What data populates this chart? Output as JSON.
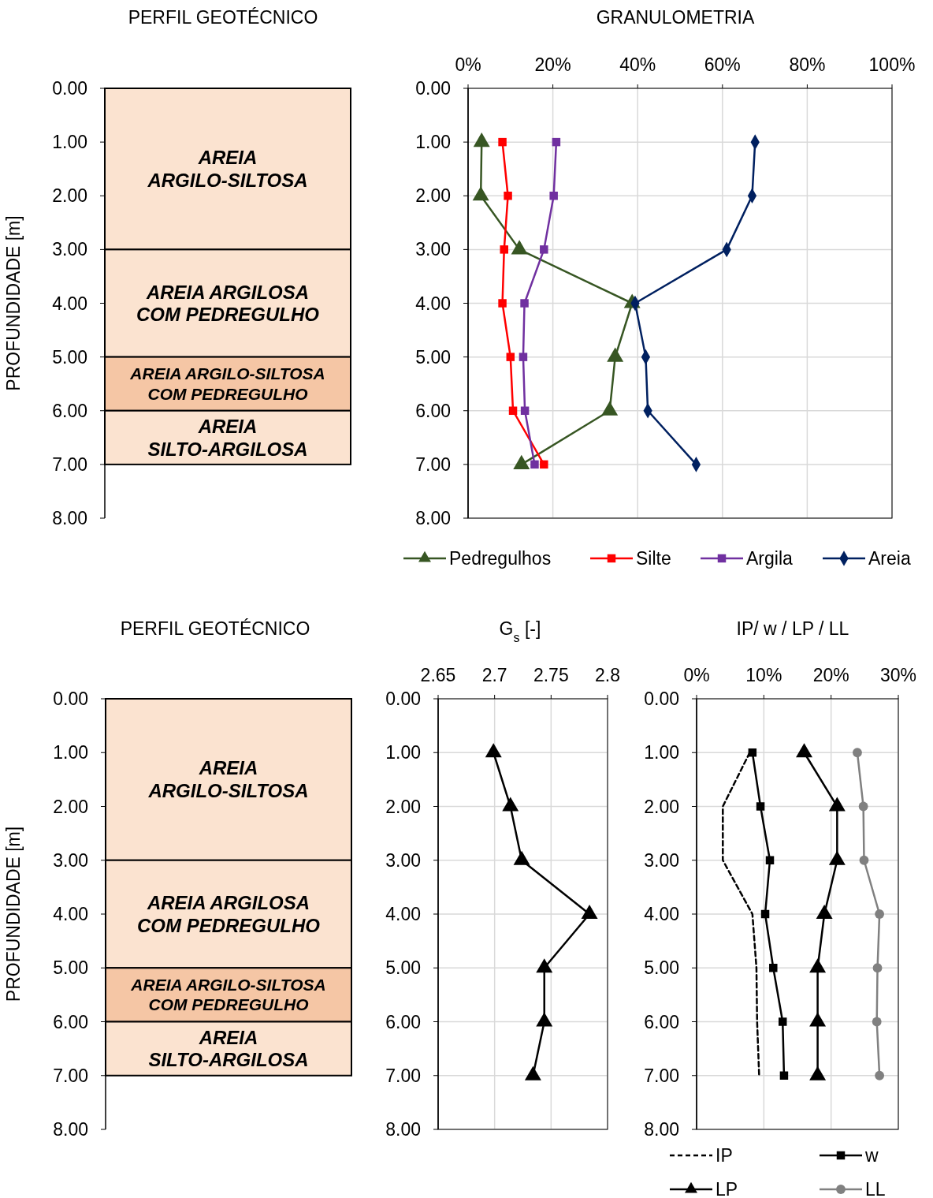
{
  "chart_data": [
    {
      "type": "bar",
      "stacked": true,
      "title": "PERFIL GEOTÉCNICO",
      "ylabel": "PROFUNDIDADE [m]",
      "categories": [
        null
      ],
      "ylim": [
        8,
        0
      ],
      "yticks": [
        {
          "value": 0,
          "label": "0.00"
        },
        {
          "value": 1,
          "label": "1.00"
        },
        {
          "value": 2,
          "label": "2.00"
        },
        {
          "value": 3,
          "label": "3.00"
        },
        {
          "value": 4,
          "label": "4.00"
        },
        {
          "value": 5,
          "label": "5.00"
        },
        {
          "value": 6,
          "label": "6.00"
        },
        {
          "value": 7,
          "label": "7.00"
        },
        {
          "value": 8,
          "label": "8.00"
        }
      ],
      "tick_labels": "y",
      "series": [
        {
          "name": "AREIA ARGILO-SILTOSA",
          "color": "#fbe3d0",
          "values": [
            3
          ]
        },
        {
          "name": "AREIA ARGILOSA COM PEDREGULHO",
          "color": "#fbe3d0",
          "values": [
            2
          ]
        },
        {
          "name": "AREIA ARGILO-SILTOSA COM PEDREGULHO",
          "color": "#f5c6a5",
          "values": [
            1
          ]
        },
        {
          "name": "AREIA SILTO-ARGILOSA",
          "color": "#fbe3d0",
          "values": [
            1
          ]
        }
      ]
    },
    {
      "type": "line",
      "title": "GRANULOMETRIA",
      "xlim": [
        0,
        100
      ],
      "xticks": [
        {
          "value": 0,
          "label": "0%"
        },
        {
          "value": 20,
          "label": "20%"
        },
        {
          "value": 40,
          "label": "40%"
        },
        {
          "value": 60,
          "label": "60%"
        },
        {
          "value": 80,
          "label": "80%"
        },
        {
          "value": 100,
          "label": "100%"
        }
      ],
      "ylim": [
        8,
        0
      ],
      "yticks": [
        {
          "value": 0,
          "label": "0.00"
        },
        {
          "value": 1,
          "label": "1.00"
        },
        {
          "value": 2,
          "label": "2.00"
        },
        {
          "value": 3,
          "label": "3.00"
        },
        {
          "value": 4,
          "label": "4.00"
        },
        {
          "value": 5,
          "label": "5.00"
        },
        {
          "value": 6,
          "label": "6.00"
        },
        {
          "value": 7,
          "label": "7.00"
        },
        {
          "value": 8,
          "label": "8.00"
        }
      ],
      "grid": true,
      "legend": "bottom",
      "series": [
        {
          "name": "Pedregulhos",
          "color": "#375623",
          "marker": "triangle",
          "line_style": "solid",
          "x": [
            3.2,
            3.0,
            12.1,
            38.7,
            34.7,
            33.4,
            12.6
          ],
          "values": [
            1,
            2,
            3,
            4,
            5,
            6,
            7
          ]
        },
        {
          "name": "Silte",
          "color": "#ff0000",
          "marker": "square",
          "line_style": "solid",
          "x": [
            8.1,
            9.4,
            8.5,
            8.1,
            10.0,
            10.6,
            17.9
          ],
          "values": [
            1,
            2,
            3,
            4,
            5,
            6,
            7
          ]
        },
        {
          "name": "Argila",
          "color": "#7030a0",
          "marker": "square",
          "line_style": "solid",
          "x": [
            20.8,
            20.2,
            17.9,
            13.3,
            13.0,
            13.4,
            15.7
          ],
          "values": [
            1,
            2,
            3,
            4,
            5,
            6,
            7
          ]
        },
        {
          "name": "Areia",
          "color": "#002060",
          "marker": "diamond",
          "line_style": "solid",
          "x": [
            67.7,
            67.0,
            61.0,
            39.4,
            41.9,
            42.4,
            53.8
          ],
          "values": [
            1,
            2,
            3,
            4,
            5,
            6,
            7
          ]
        }
      ]
    },
    {
      "type": "bar",
      "stacked": true,
      "title": "PERFIL GEOTÉCNICO",
      "ylabel": "PROFUNDIDADE [m]",
      "categories": [
        null
      ],
      "ylim": [
        8,
        0
      ],
      "yticks": [
        {
          "value": 0,
          "label": "0.00"
        },
        {
          "value": 1,
          "label": "1.00"
        },
        {
          "value": 2,
          "label": "2.00"
        },
        {
          "value": 3,
          "label": "3.00"
        },
        {
          "value": 4,
          "label": "4.00"
        },
        {
          "value": 5,
          "label": "5.00"
        },
        {
          "value": 6,
          "label": "6.00"
        },
        {
          "value": 7,
          "label": "7.00"
        },
        {
          "value": 8,
          "label": "8.00"
        }
      ],
      "tick_labels": "y",
      "series": [
        {
          "name": "AREIA ARGILO-SILTOSA",
          "color": "#fbe3d0",
          "values": [
            3
          ]
        },
        {
          "name": "AREIA ARGILOSA COM PEDREGULHO",
          "color": "#fbe3d0",
          "values": [
            2
          ]
        },
        {
          "name": "AREIA ARGILO-SILTOSA COM PEDREGULHO",
          "color": "#f5c6a5",
          "values": [
            1
          ]
        },
        {
          "name": "AREIA SILTO-ARGILOSA",
          "color": "#fbe3d0",
          "values": [
            1
          ]
        }
      ]
    },
    {
      "type": "line",
      "title": "G$_{s}$ [-]",
      "xlim": [
        2.65,
        2.8
      ],
      "xticks": [
        2.65,
        2.7,
        2.75,
        2.8
      ],
      "ylim": [
        8,
        0
      ],
      "yticks": [
        {
          "value": 0,
          "label": "0.00"
        },
        {
          "value": 1,
          "label": "1.00"
        },
        {
          "value": 2,
          "label": "2.00"
        },
        {
          "value": 3,
          "label": "3.00"
        },
        {
          "value": 4,
          "label": "4.00"
        },
        {
          "value": 5,
          "label": "5.00"
        },
        {
          "value": 6,
          "label": "6.00"
        },
        {
          "value": 7,
          "label": "7.00"
        },
        {
          "value": 8,
          "label": "8.00"
        }
      ],
      "grid": true,
      "legend": false,
      "series": [
        {
          "color": "#000000",
          "marker": "triangle",
          "line_style": "solid",
          "x": [
            2.699,
            2.714,
            2.724,
            2.784,
            2.744,
            2.744,
            2.734
          ],
          "values": [
            1,
            2,
            3,
            4,
            5,
            6,
            7
          ]
        }
      ]
    },
    {
      "type": "line",
      "title": "IP/ w / LP / LL",
      "xlim": [
        0,
        30
      ],
      "xticks": [
        {
          "value": 0,
          "label": "0%"
        },
        {
          "value": 10,
          "label": "10%"
        },
        {
          "value": 20,
          "label": "20%"
        },
        {
          "value": 30,
          "label": "30%"
        }
      ],
      "ylim": [
        8,
        0
      ],
      "yticks": [
        {
          "value": 0,
          "label": "0.00"
        },
        {
          "value": 1,
          "label": "1.00"
        },
        {
          "value": 2,
          "label": "2.00"
        },
        {
          "value": 3,
          "label": "3.00"
        },
        {
          "value": 4,
          "label": "4.00"
        },
        {
          "value": 5,
          "label": "5.00"
        },
        {
          "value": 6,
          "label": "6.00"
        },
        {
          "value": 7,
          "label": "7.00"
        },
        {
          "value": 8,
          "label": "8.00"
        }
      ],
      "grid": true,
      "legend": "bottom",
      "series": [
        {
          "name": "IP",
          "color": "#000000",
          "marker": "none",
          "line_style": "dashed",
          "x": [
            7.9,
            3.9,
            3.9,
            8.3,
            8.9,
            9.0,
            9.3
          ],
          "values": [
            1,
            2,
            3,
            4,
            5,
            6,
            7
          ]
        },
        {
          "name": "w",
          "color": "#000000",
          "marker": "square",
          "line_style": "solid",
          "x": [
            8.3,
            9.5,
            10.9,
            10.2,
            11.4,
            12.8,
            13.0
          ],
          "values": [
            1,
            2,
            3,
            4,
            5,
            6,
            7
          ]
        },
        {
          "name": "LP",
          "color": "#000000",
          "marker": "triangle",
          "line_style": "solid",
          "x": [
            16.0,
            20.9,
            20.9,
            19.0,
            18.0,
            18.0,
            18.0
          ],
          "values": [
            1,
            2,
            3,
            4,
            5,
            6,
            7
          ]
        },
        {
          "name": "LL",
          "color": "#808080",
          "marker": "circle",
          "line_style": "solid",
          "x": [
            23.9,
            24.8,
            24.9,
            27.2,
            26.9,
            26.8,
            27.2
          ],
          "values": [
            1,
            2,
            3,
            4,
            5,
            6,
            7
          ]
        }
      ]
    }
  ]
}
